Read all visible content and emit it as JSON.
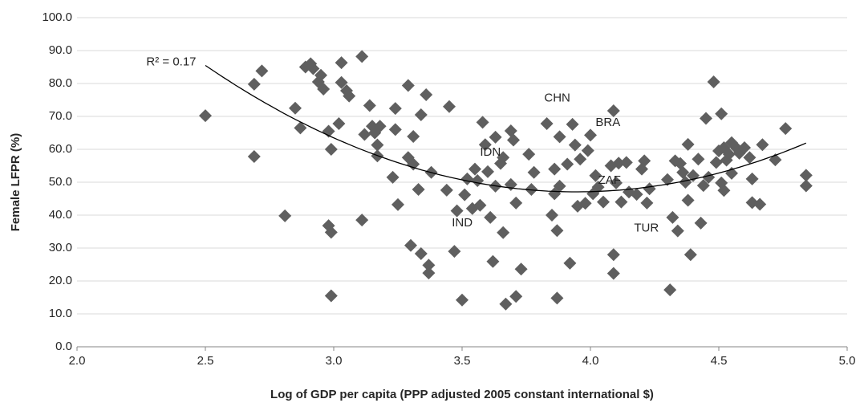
{
  "chart_data": {
    "type": "scatter",
    "y_label": "Female LFPR (%)",
    "x_label": "Log of GDP per capita (PPP adjusted 2005 constant international $)",
    "color": "#5f5f5f",
    "marker": "diamond",
    "grid": true,
    "trendline": "polynomial",
    "trendline_color": "#000000",
    "annotations": [
      "R² = 0.17",
      "CHN",
      "BRA",
      "IDN",
      "ZAF",
      "IND",
      "TUR"
    ],
    "xlim": [
      2,
      5
    ],
    "xticks": [
      {
        "value": 2,
        "label": "2.0"
      },
      {
        "value": 2.5,
        "label": "2.5"
      },
      {
        "value": 3,
        "label": "3.0"
      },
      {
        "value": 3.5,
        "label": "3.5"
      },
      {
        "value": 4,
        "label": "4.0"
      },
      {
        "value": 4.5,
        "label": "4.5"
      },
      {
        "value": 5,
        "label": "5.0"
      }
    ],
    "ylim": [
      0,
      100
    ],
    "yticks": [
      {
        "value": 0,
        "label": "0.0"
      },
      {
        "value": 10,
        "label": "10.0"
      },
      {
        "value": 20,
        "label": "20.0"
      },
      {
        "value": 30,
        "label": "30.0"
      },
      {
        "value": 40,
        "label": "40.0"
      },
      {
        "value": 50,
        "label": "50.0"
      },
      {
        "value": 60,
        "label": "60.0"
      },
      {
        "value": 70,
        "label": "70.0"
      },
      {
        "value": 80,
        "label": "80.0"
      },
      {
        "value": 90,
        "label": "90.0"
      },
      {
        "value": 100,
        "label": "100.0"
      }
    ],
    "x": [
      2.5,
      2.69,
      2.69,
      2.72,
      2.81,
      2.85,
      2.87,
      2.89,
      2.91,
      2.92,
      2.94,
      2.95,
      2.96,
      2.98,
      2.98,
      2.99,
      2.99,
      2.99,
      3.02,
      3.03,
      3.03,
      3.05,
      3.06,
      3.11,
      3.11,
      3.12,
      3.14,
      3.15,
      3.16,
      3.17,
      3.17,
      3.18,
      3.23,
      3.24,
      3.24,
      3.25,
      3.29,
      3.29,
      3.3,
      3.31,
      3.31,
      3.33,
      3.34,
      3.34,
      3.36,
      3.37,
      3.37,
      3.38,
      3.44,
      3.45,
      3.47,
      3.48,
      3.5,
      3.51,
      3.52,
      3.54,
      3.55,
      3.56,
      3.57,
      3.58,
      3.59,
      3.6,
      3.61,
      3.62,
      3.63,
      3.63,
      3.65,
      3.66,
      3.66,
      3.67,
      3.69,
      3.69,
      3.7,
      3.71,
      3.71,
      3.73,
      3.76,
      3.77,
      3.78,
      3.83,
      3.85,
      3.86,
      3.86,
      3.87,
      3.87,
      3.88,
      3.88,
      3.91,
      3.92,
      3.93,
      3.94,
      3.95,
      3.96,
      3.98,
      3.99,
      4.0,
      4.01,
      4.02,
      4.03,
      4.05,
      4.08,
      4.09,
      4.09,
      4.09,
      4.1,
      4.11,
      4.12,
      4.14,
      4.15,
      4.18,
      4.2,
      4.21,
      4.22,
      4.23,
      4.3,
      4.31,
      4.32,
      4.33,
      4.34,
      4.35,
      4.36,
      4.37,
      4.38,
      4.38,
      4.39,
      4.4,
      4.42,
      4.43,
      4.44,
      4.45,
      4.46,
      4.48,
      4.49,
      4.5,
      4.51,
      4.51,
      4.52,
      4.52,
      4.53,
      4.54,
      4.55,
      4.55,
      4.57,
      4.58,
      4.6,
      4.62,
      4.63,
      4.63,
      4.66,
      4.67,
      4.72,
      4.76,
      4.84,
      4.84
    ],
    "values": [
      70.2,
      79.8,
      57.8,
      83.8,
      39.8,
      72.5,
      66.5,
      85,
      86,
      84.5,
      80.5,
      82.5,
      78.3,
      65.5,
      36.8,
      34.8,
      60,
      15.5,
      67.8,
      86.3,
      80.3,
      77.8,
      76.2,
      88.2,
      38.5,
      64.5,
      73.3,
      67,
      65,
      61.3,
      58,
      67,
      51.5,
      72.4,
      66,
      43.2,
      79.4,
      57.5,
      30.8,
      55.5,
      63.9,
      47.8,
      28.3,
      70.5,
      76.6,
      24.8,
      22.4,
      53,
      47.6,
      73,
      29,
      41.3,
      14.2,
      46.2,
      51,
      42,
      54,
      50.5,
      43,
      68.2,
      61.4,
      53.2,
      39.3,
      25.9,
      48.8,
      63.7,
      55.7,
      34.7,
      57.5,
      13,
      49.3,
      65.6,
      62.8,
      15.3,
      43.7,
      23.6,
      58.5,
      47.8,
      53,
      67.8,
      40,
      54,
      46.5,
      35.3,
      14.8,
      48.8,
      63.8,
      55.5,
      25.4,
      67.6,
      61.3,
      42.7,
      57,
      43.6,
      59.6,
      64.3,
      46.5,
      52,
      48.5,
      44,
      55,
      71.7,
      28,
      22.3,
      49.8,
      55.8,
      44,
      56,
      47,
      46.3,
      54,
      56.5,
      43.7,
      48,
      50.8,
      17.3,
      39.3,
      56.5,
      35.2,
      55.7,
      53,
      50,
      44.5,
      61.5,
      28,
      52,
      57,
      37.6,
      49,
      69.4,
      51.5,
      80.5,
      56,
      59.5,
      70.8,
      49.8,
      47.5,
      60.5,
      56.7,
      58.5,
      62,
      52.7,
      60.3,
      58.8,
      60.5,
      57.5,
      43.8,
      51,
      43.3,
      61.4,
      56.8,
      66.3,
      52.1,
      48.9
    ]
  }
}
